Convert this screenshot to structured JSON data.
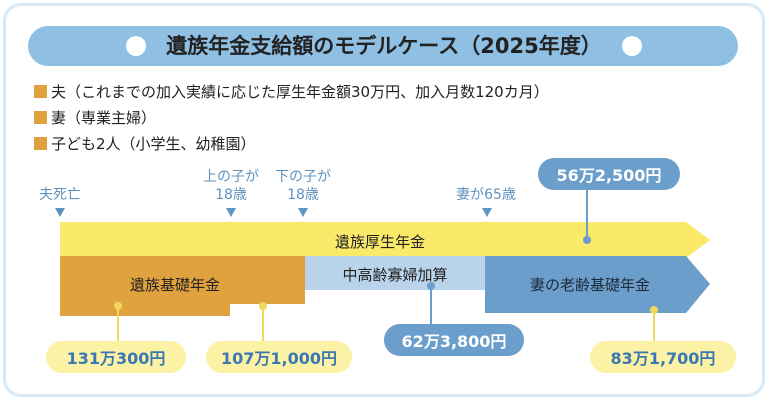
{
  "title": "遺族年金支給額のモデルケース（2025年度）",
  "conditions": [
    "夫（これまでの加入実績に応じた厚生年金額30万円、加入月数120カ月）",
    "妻（専業主婦）",
    "子ども2人（小学生、幼稚園）"
  ],
  "timeline": {
    "death": "夫死亡",
    "first_child_line1": "上の子が",
    "first_child_line2": "18歳",
    "second_child_line1": "下の子が",
    "second_child_line2": "18歳",
    "wife65": "妻が65歳"
  },
  "bars": {
    "survivor_employees": "遺族厚生年金",
    "survivor_basic": "遺族基礎年金",
    "widow_supplement": "中高齢寡婦加算",
    "wife_basic": "妻の老齢基礎年金"
  },
  "amounts": {
    "survivor_employees": "56万2,500円",
    "basic_with_two_children": "131万300円",
    "basic_with_one_child": "107万1,000円",
    "widow_supplement": "62万3,800円",
    "wife_basic": "83万1,700円"
  },
  "colors": {
    "yellow_bar": "#fbe96a",
    "orange_bar": "#e0a13f",
    "light_blue_bar": "#b9d4ea",
    "blue_bar": "#6b9ecb",
    "marker_blue": "#5f93bf"
  }
}
